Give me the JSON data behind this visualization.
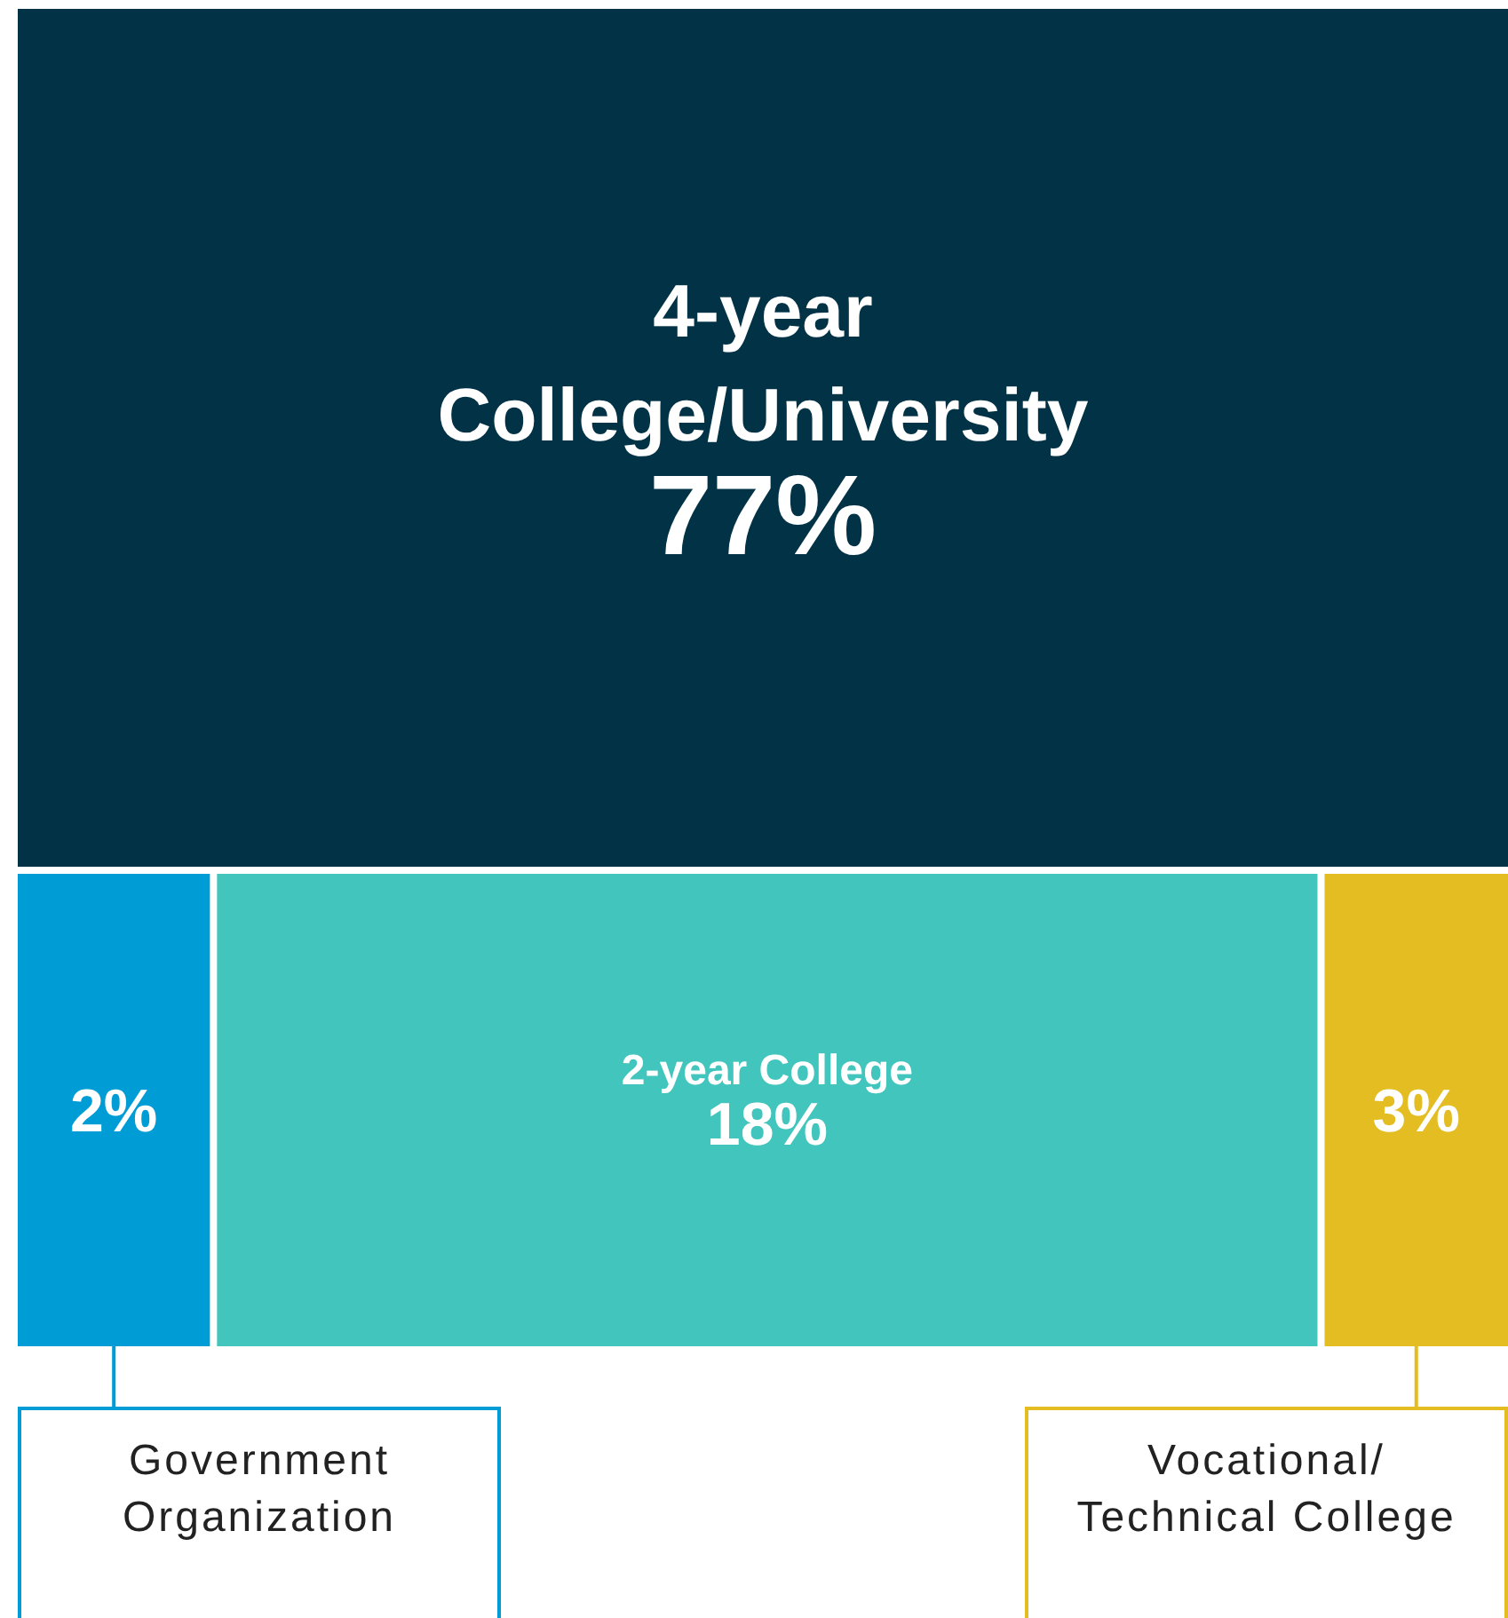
{
  "chart_data": {
    "type": "other",
    "categories": [
      "4-year College/University",
      "Government Organization",
      "2-year College",
      "Vocational/ Technical College"
    ],
    "values": [
      77,
      2,
      18,
      3
    ],
    "value_labels": [
      "77%",
      "2%",
      "18%",
      "3%"
    ],
    "colors": [
      "#023246",
      "#009cd6",
      "#42c5bd",
      "#e3bd22"
    ]
  }
}
